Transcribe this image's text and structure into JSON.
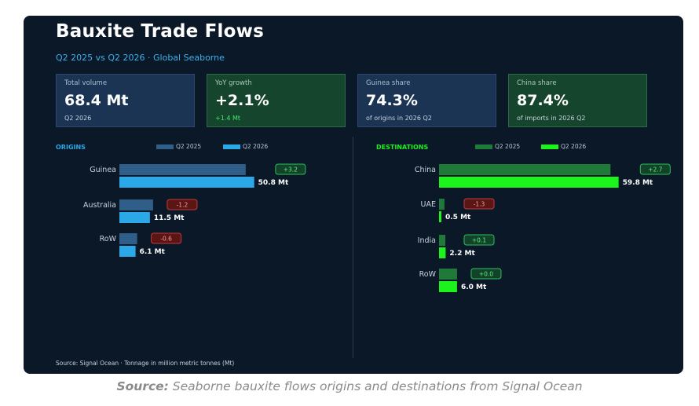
{
  "header": {
    "title": "Bauxite Trade Flows",
    "subtitle": "Q2 2025 vs Q2 2026 · Global Seaborne"
  },
  "kpis": [
    {
      "label": "Total volume",
      "value": "68.4 Mt",
      "sub": "Q2 2026",
      "style": "blue"
    },
    {
      "label": "YoY growth",
      "value": "+2.1%",
      "sub": "+1.4 Mt",
      "style": "green"
    },
    {
      "label": "Guinea share",
      "value": "74.3%",
      "sub": "of origins in 2026 Q2",
      "style": "blue"
    },
    {
      "label": "China share",
      "value": "87.4%",
      "sub": "of imports in 2026 Q2",
      "style": "green"
    }
  ],
  "origins": {
    "title": "ORIGINS",
    "legend": [
      "Q2 2025",
      "Q2 2026"
    ]
  },
  "destinations": {
    "title": "DESTINATIONS",
    "legend": [
      "Q2 2025",
      "Q2 2026"
    ]
  },
  "footer": "Source: Signal Ocean · Tonnage in million metric tonnes (Mt)",
  "caption": {
    "bold": "Source:",
    "text": " Seaborne bauxite flows origins and destinations from Signal Ocean"
  },
  "colors": {
    "origins_2025": "#2f5e88",
    "origins_2026": "#2aa8e8",
    "dest_2025": "#1f7a3a",
    "dest_2026": "#1cf21c",
    "delta_pos_bg": "#12422a",
    "delta_pos_border": "#2fbf5b",
    "delta_pos_text": "#5cf07e",
    "delta_neg_bg": "#5a1515",
    "delta_neg_border": "#c23a3a",
    "delta_neg_text": "#ff9a9a"
  },
  "chart_data": [
    {
      "type": "bar",
      "title": "ORIGINS",
      "orientation": "horizontal",
      "categories": [
        "Guinea",
        "Australia",
        "RoW"
      ],
      "series": [
        {
          "name": "Q2 2025",
          "values": [
            47.6,
            12.7,
            6.7
          ]
        },
        {
          "name": "Q2 2026",
          "values": [
            50.8,
            11.5,
            6.1
          ]
        }
      ],
      "value_labels": [
        "50.8 Mt",
        "11.5 Mt",
        "6.1 Mt"
      ],
      "deltas": [
        "+3.2",
        "-1.2",
        "-0.6"
      ],
      "xlim": [
        0,
        58
      ]
    },
    {
      "type": "bar",
      "title": "DESTINATIONS",
      "orientation": "horizontal",
      "categories": [
        "China",
        "UAE",
        "India",
        "RoW"
      ],
      "series": [
        {
          "name": "Q2 2025",
          "values": [
            57.1,
            1.8,
            2.1,
            6.0
          ]
        },
        {
          "name": "Q2 2026",
          "values": [
            59.8,
            0.5,
            2.2,
            6.0
          ]
        }
      ],
      "value_labels": [
        "59.8 Mt",
        "0.5 Mt",
        "2.2 Mt",
        "6.0 Mt"
      ],
      "deltas": [
        "+2.7",
        "-1.3",
        "+0.1",
        "+0.0"
      ],
      "xlim": [
        0,
        68
      ]
    }
  ]
}
